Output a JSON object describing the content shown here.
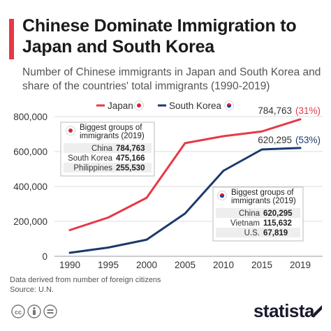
{
  "header": {
    "title": "Chinese Dominate Immigration to Japan and South Korea",
    "subtitle": "Number of Chinese immigrants in Japan and South Korea and share of the countries' total immigrants (1990-2019)"
  },
  "chart_data": {
    "type": "line",
    "title": "Chinese Dominate Immigration to Japan and South Korea",
    "subtitle": "Number of Chinese immigrants in Japan and South Korea and share of the countries' total immigrants (1990-2019)",
    "x": [
      "1990",
      "1995",
      "2000",
      "2005",
      "2010",
      "2015",
      "2019"
    ],
    "ylim": [
      0,
      800000
    ],
    "yticks": [
      "800,000",
      "600,000",
      "400,000",
      "200,000",
      "0"
    ],
    "grid": true,
    "legend_position": "top",
    "series": [
      {
        "name": "Japan",
        "color": "#e63946",
        "values": [
          150000,
          222000,
          335000,
          648000,
          688000,
          715000,
          784763
        ],
        "end_label": "784,763",
        "end_share": "(31%)"
      },
      {
        "name": "South Korea",
        "color": "#1c3a6b",
        "values": [
          20000,
          50000,
          95000,
          245000,
          490000,
          612000,
          620295
        ],
        "end_label": "620,295",
        "end_share": "(53%)"
      }
    ],
    "annotations": [
      {
        "id": "japan",
        "heading": "Biggest groups of immigrants (2019)",
        "rows": [
          [
            "China",
            "784,763"
          ],
          [
            "South Korea",
            "475,166"
          ],
          [
            "Philippines",
            "255,530"
          ]
        ]
      },
      {
        "id": "korea",
        "heading": "Biggest groups of immigrants (2019)",
        "rows": [
          [
            "China",
            "620,295"
          ],
          [
            "Vietnam",
            "115,632"
          ],
          [
            "U.S.",
            "67,819"
          ]
        ]
      }
    ]
  },
  "footer": {
    "note": "Data derived from number of foreign citizens",
    "source": "Source: U.N."
  },
  "brand": {
    "name": "statista"
  },
  "icons": [
    "japan-flag-icon",
    "south-korea-flag-icon",
    "cc-icon",
    "attribution-icon",
    "equals-icon"
  ]
}
